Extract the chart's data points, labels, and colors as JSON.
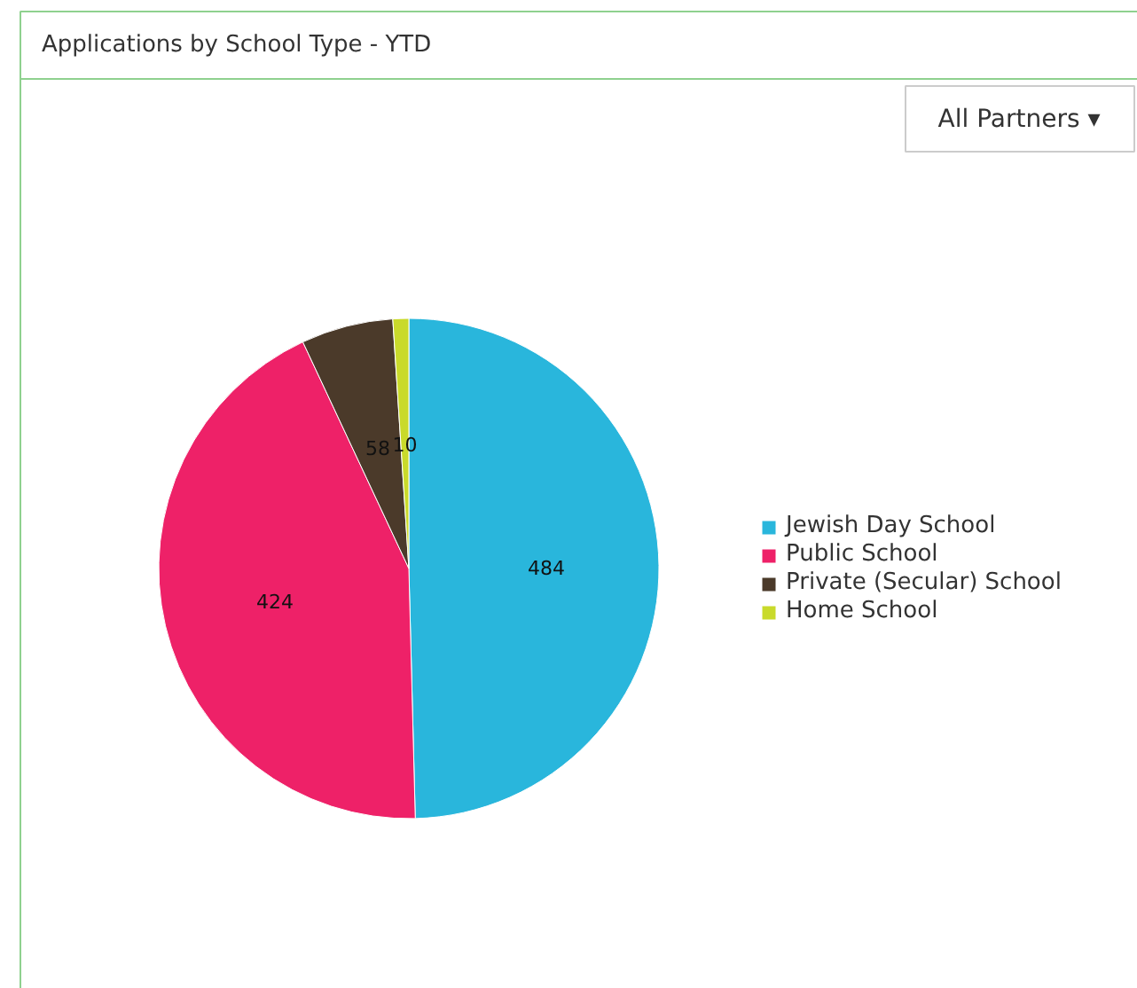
{
  "chart_data": {
    "type": "pie",
    "title": "Applications by School Type - YTD",
    "categories": [
      "Jewish Day School",
      "Public School",
      "Private (Secular) School",
      "Home School"
    ],
    "values": [
      484,
      424,
      58,
      10
    ],
    "colors": [
      "#29b6dc",
      "#ee2168",
      "#4b3a2a",
      "#c9da2b"
    ],
    "data_labels": true,
    "legend": "right",
    "annotations": [
      "All Partners ▾"
    ]
  }
}
